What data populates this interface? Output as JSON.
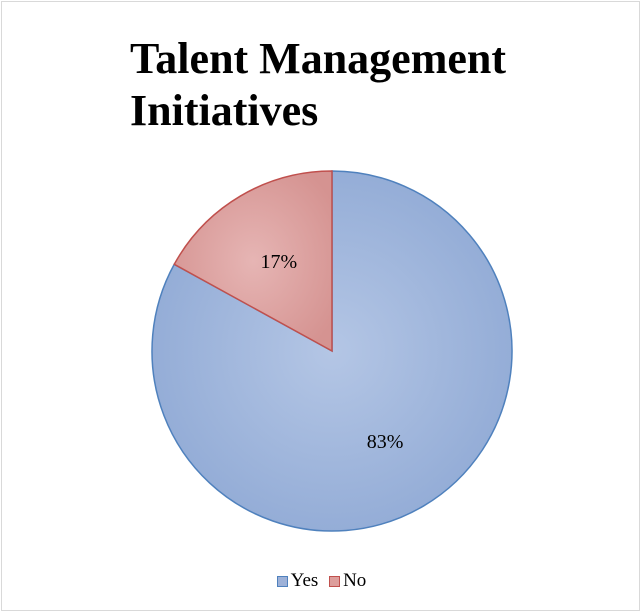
{
  "chart_data": {
    "type": "pie",
    "title": "Talent Management Initiatives",
    "categories": [
      "Yes",
      "No"
    ],
    "values": [
      83,
      17
    ],
    "labels": [
      "83%",
      "17%"
    ],
    "colors": [
      "#9db1d8",
      "#dd9e9c"
    ],
    "edge_colors": [
      "#4f81bd",
      "#c0504d"
    ],
    "legend_position": "bottom"
  }
}
